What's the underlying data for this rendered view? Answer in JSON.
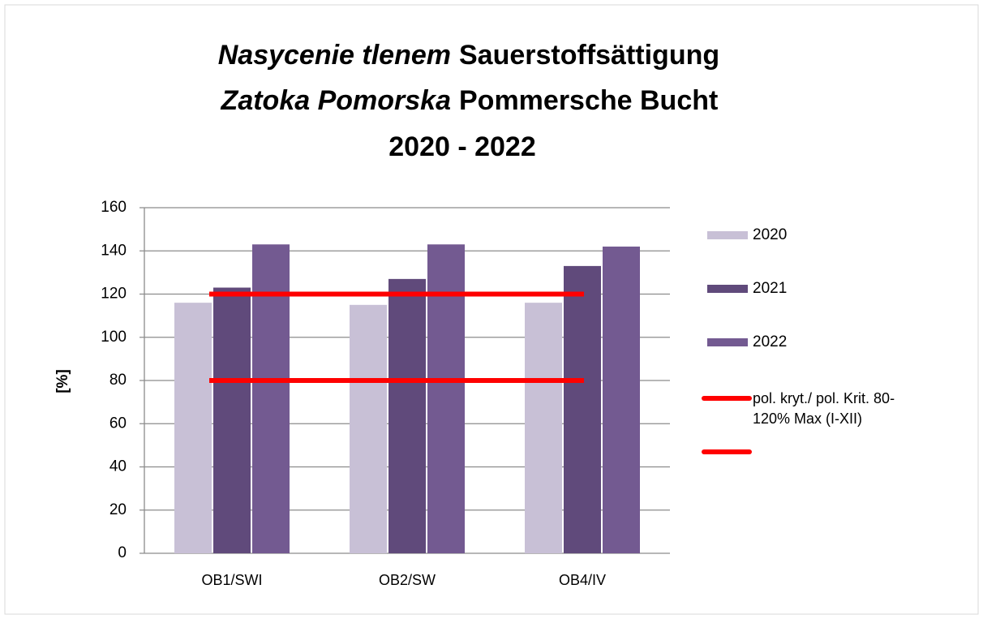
{
  "chart_data": {
    "type": "bar",
    "title": [
      "Nasycenie tlenem",
      "Sauerstoffsättigung",
      "Zatoka Pomorska",
      "Pommersche Bucht",
      "2020 - 2022"
    ],
    "ylabel": "[%]",
    "categories": [
      "OB1/SWI",
      "OB2/SW",
      "OB4/IV"
    ],
    "series": [
      {
        "name": "2020",
        "color": "#c8c0d6",
        "values": [
          116,
          115,
          116
        ]
      },
      {
        "name": "2021",
        "color": "#604a7b",
        "values": [
          123,
          127,
          133
        ]
      },
      {
        "name": "2022",
        "color": "#735a91",
        "values": [
          143,
          143,
          142
        ]
      }
    ],
    "lines": [
      {
        "name": "pol. kryt./ pol. Krit. 80-120% Max  (I-XII)",
        "color": "#ff0000",
        "values": [
          120,
          120,
          120
        ]
      },
      {
        "color": "#ff0000",
        "values": [
          80,
          80,
          80
        ]
      }
    ],
    "ylim": [
      0,
      160
    ],
    "yticks": [
      0,
      20,
      40,
      60,
      80,
      100,
      120,
      140,
      160
    ],
    "grid": true,
    "legend": "right"
  }
}
